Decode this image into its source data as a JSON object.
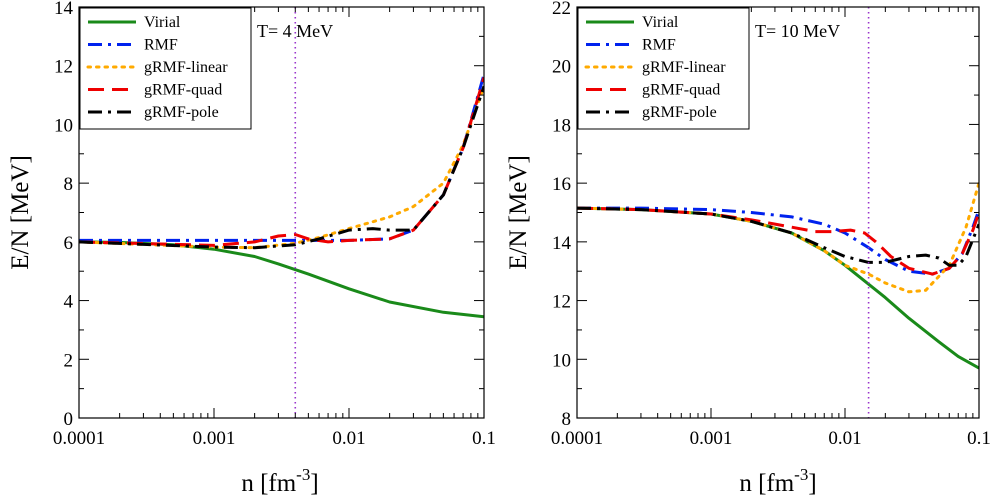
{
  "figure": {
    "background": "#ffffff"
  },
  "chart_data": [
    {
      "type": "line",
      "annotation": "T= 4 MeV",
      "xlabel": "n   [fm-3]",
      "xlabel_main": "n   [fm",
      "xlabel_sup": "-3",
      "xlabel_close": "]",
      "ylabel": "E/N   [MeV]",
      "xscale": "log",
      "xlim": [
        0.0001,
        0.1
      ],
      "ylim": [
        0,
        14
      ],
      "x_ticks": [
        0.0001,
        0.001,
        0.01,
        0.1
      ],
      "x_tick_labels": [
        "0.0001",
        "0.001",
        "0.01",
        "0.1"
      ],
      "y_ticks": [
        0,
        2,
        4,
        6,
        8,
        10,
        12,
        14
      ],
      "y_tick_labels": [
        "0",
        "2",
        "4",
        "6",
        "8",
        "10",
        "12",
        "14"
      ],
      "grid": false,
      "legend_position": "top-left",
      "vline": {
        "x": 0.004,
        "color": "#9933cc",
        "style": "dotted"
      },
      "series": [
        {
          "name": "Virial",
          "color": "#1a8a1a",
          "dash": "solid",
          "x": [
            0.0001,
            0.0002,
            0.0005,
            0.001,
            0.002,
            0.003,
            0.005,
            0.01,
            0.02,
            0.05,
            0.1
          ],
          "y": [
            6.0,
            5.98,
            5.9,
            5.75,
            5.5,
            5.25,
            4.9,
            4.4,
            3.95,
            3.6,
            3.45
          ]
        },
        {
          "name": "RMF",
          "color": "#0022ee",
          "dash": "dashdot",
          "x": [
            0.0001,
            0.001,
            0.002,
            0.004,
            0.006,
            0.01,
            0.02,
            0.03,
            0.05,
            0.07,
            0.1
          ],
          "y": [
            6.05,
            6.05,
            6.05,
            6.05,
            6.05,
            6.05,
            6.1,
            6.4,
            7.6,
            9.2,
            11.7
          ]
        },
        {
          "name": "gRMF-linear",
          "color": "#ffaa00",
          "dash": "dotted",
          "x": [
            0.0001,
            0.001,
            0.002,
            0.004,
            0.006,
            0.01,
            0.02,
            0.03,
            0.05,
            0.07,
            0.1
          ],
          "y": [
            6.0,
            5.82,
            5.8,
            5.95,
            6.15,
            6.45,
            6.85,
            7.2,
            8.0,
            9.3,
            11.3
          ]
        },
        {
          "name": "gRMF-quad",
          "color": "#ee0000",
          "dash": "dashed",
          "x": [
            0.0001,
            0.001,
            0.002,
            0.003,
            0.004,
            0.005,
            0.007,
            0.01,
            0.02,
            0.03,
            0.05,
            0.07,
            0.1
          ],
          "y": [
            6.0,
            5.88,
            6.0,
            6.2,
            6.25,
            6.1,
            6.0,
            6.05,
            6.1,
            6.4,
            7.6,
            9.2,
            11.6
          ]
        },
        {
          "name": "gRMF-pole",
          "color": "#000000",
          "dash": "dashdot",
          "x": [
            0.0001,
            0.001,
            0.002,
            0.004,
            0.006,
            0.01,
            0.015,
            0.02,
            0.03,
            0.05,
            0.07,
            0.1
          ],
          "y": [
            6.0,
            5.82,
            5.8,
            5.9,
            6.1,
            6.4,
            6.45,
            6.4,
            6.4,
            7.6,
            9.2,
            11.3
          ]
        }
      ]
    },
    {
      "type": "line",
      "annotation": "T= 10 MeV",
      "xlabel": "n   [fm-3]",
      "xlabel_main": "n   [fm",
      "xlabel_sup": "-3",
      "xlabel_close": "]",
      "ylabel": "E/N   [MeV]",
      "xscale": "log",
      "xlim": [
        0.0001,
        0.1
      ],
      "ylim": [
        8,
        22
      ],
      "x_ticks": [
        0.0001,
        0.001,
        0.01,
        0.1
      ],
      "x_tick_labels": [
        "0.0001",
        "0.001",
        "0.01",
        "0.1"
      ],
      "y_ticks": [
        8,
        10,
        12,
        14,
        16,
        18,
        20,
        22
      ],
      "y_tick_labels": [
        "8",
        "10",
        "12",
        "14",
        "16",
        "18",
        "20",
        "22"
      ],
      "grid": false,
      "legend_position": "top-left",
      "vline": {
        "x": 0.015,
        "color": "#9933cc",
        "style": "dotted"
      },
      "series": [
        {
          "name": "Virial",
          "color": "#1a8a1a",
          "dash": "solid",
          "x": [
            0.0001,
            0.0003,
            0.001,
            0.002,
            0.004,
            0.007,
            0.01,
            0.02,
            0.03,
            0.05,
            0.07,
            0.1
          ],
          "y": [
            15.15,
            15.1,
            14.95,
            14.7,
            14.3,
            13.7,
            13.2,
            12.1,
            11.4,
            10.6,
            10.1,
            9.7
          ]
        },
        {
          "name": "RMF",
          "color": "#0022ee",
          "dash": "dashdot",
          "x": [
            0.0001,
            0.0003,
            0.001,
            0.002,
            0.004,
            0.007,
            0.01,
            0.015,
            0.02,
            0.03,
            0.045,
            0.06,
            0.075,
            0.09,
            0.1
          ],
          "y": [
            15.15,
            15.15,
            15.1,
            15.0,
            14.85,
            14.6,
            14.3,
            13.8,
            13.4,
            13.0,
            12.9,
            13.1,
            13.6,
            14.5,
            15.1
          ]
        },
        {
          "name": "gRMF-linear",
          "color": "#ffaa00",
          "dash": "dotted",
          "x": [
            0.0001,
            0.0003,
            0.001,
            0.002,
            0.004,
            0.007,
            0.01,
            0.015,
            0.02,
            0.03,
            0.04,
            0.06,
            0.08,
            0.1
          ],
          "y": [
            15.15,
            15.1,
            14.95,
            14.7,
            14.3,
            13.7,
            13.2,
            12.9,
            12.6,
            12.3,
            12.35,
            13.2,
            14.5,
            16.0
          ]
        },
        {
          "name": "gRMF-quad",
          "color": "#ee0000",
          "dash": "dashed",
          "x": [
            0.0001,
            0.0003,
            0.001,
            0.002,
            0.004,
            0.006,
            0.008,
            0.011,
            0.014,
            0.017,
            0.022,
            0.03,
            0.045,
            0.06,
            0.075,
            0.09,
            0.1
          ],
          "y": [
            15.15,
            15.1,
            14.95,
            14.75,
            14.5,
            14.35,
            14.35,
            14.4,
            14.3,
            14.0,
            13.5,
            13.1,
            12.9,
            13.1,
            13.6,
            14.4,
            15.0
          ]
        },
        {
          "name": "gRMF-pole",
          "color": "#000000",
          "dash": "dashdot",
          "x": [
            0.0001,
            0.0003,
            0.001,
            0.002,
            0.004,
            0.007,
            0.01,
            0.015,
            0.02,
            0.03,
            0.04,
            0.05,
            0.06,
            0.07,
            0.08,
            0.1
          ],
          "y": [
            15.15,
            15.1,
            14.95,
            14.7,
            14.3,
            13.8,
            13.5,
            13.3,
            13.3,
            13.5,
            13.55,
            13.45,
            13.2,
            13.2,
            13.5,
            14.6
          ]
        }
      ]
    }
  ]
}
